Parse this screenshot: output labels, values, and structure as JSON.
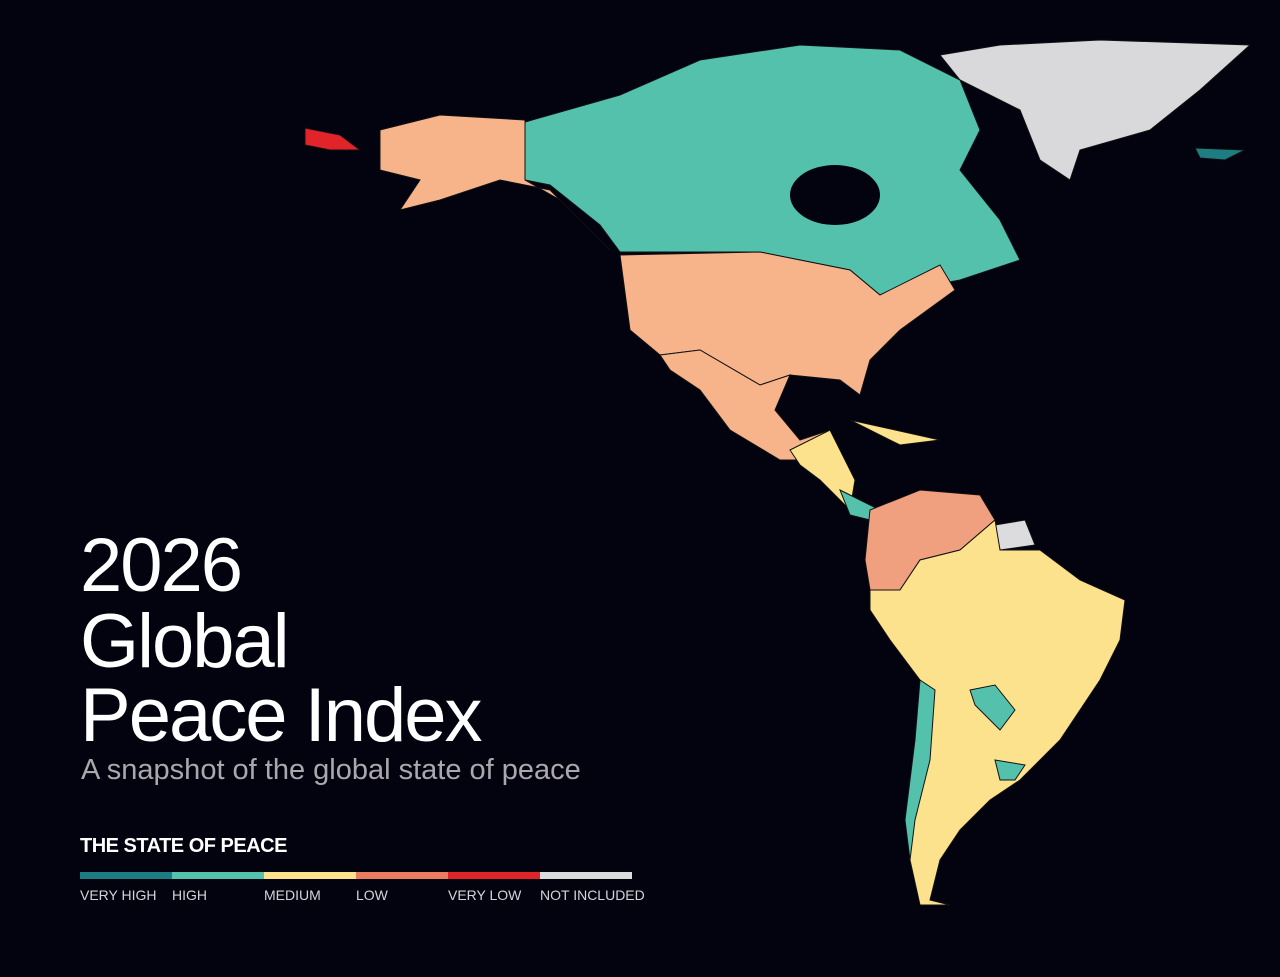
{
  "title": {
    "line1": "2026",
    "line2": "Global",
    "line3": "Peace Index"
  },
  "subtitle": "A snapshot of the global state of peace",
  "legend": {
    "title": "THE STATE OF PEACE",
    "items": [
      {
        "label": "VERY HIGH",
        "color": "#1e7d82"
      },
      {
        "label": "HIGH",
        "color": "#53c1ac"
      },
      {
        "label": "MEDIUM",
        "color": "#fde28d"
      },
      {
        "label": "LOW",
        "color": "#ec7c60"
      },
      {
        "label": "VERY LOW",
        "color": "#e0242a"
      },
      {
        "label": "NOT INCLUDED",
        "color": "#dcdcdf"
      }
    ]
  }
}
